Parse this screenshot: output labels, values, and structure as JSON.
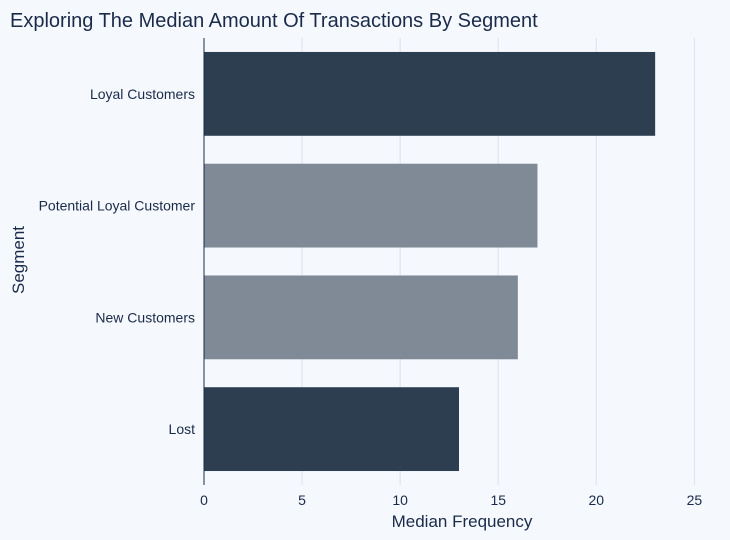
{
  "chart_data": {
    "type": "bar",
    "orientation": "horizontal",
    "title": "Exploring The Median Amount Of Transactions By Segment",
    "xlabel": "Median Frequency",
    "ylabel": "Segment",
    "categories": [
      "Loyal Customers",
      "Potential Loyal Customer",
      "New Customers",
      "Lost"
    ],
    "values": [
      23,
      17,
      16,
      13
    ],
    "bar_colors": [
      "#2c3e50",
      "#7f8a96",
      "#7f8a96",
      "#2c3e50"
    ],
    "xlim": [
      0,
      26
    ],
    "xticks": [
      0,
      5,
      10,
      15,
      20,
      25
    ],
    "grid": "vertical",
    "legend": "none"
  },
  "colors": {
    "background": "#f5f8fd",
    "text": "#1a2b4a",
    "grid": "#dde2ea"
  }
}
